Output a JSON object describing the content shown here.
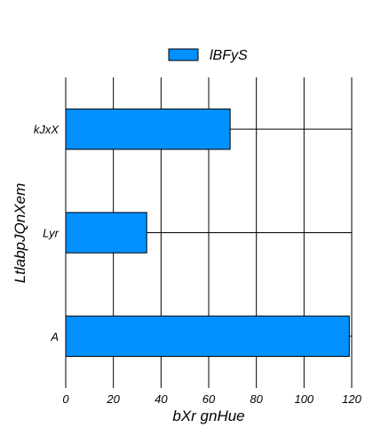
{
  "chart_data": {
    "type": "bar",
    "orientation": "horizontal",
    "categories": [
      "A",
      "Lyr",
      "kJxX"
    ],
    "series": [
      {
        "name": "lBFyS",
        "values": [
          119,
          34,
          69
        ],
        "color": "#0090ff"
      }
    ],
    "xlabel": "bXr gnHue",
    "ylabel": "LtlabpJQnXem",
    "xlim": [
      0,
      120
    ],
    "xticks": [
      0,
      20,
      40,
      60,
      80,
      100,
      120
    ],
    "grid": true,
    "legend_position": "top-center"
  }
}
